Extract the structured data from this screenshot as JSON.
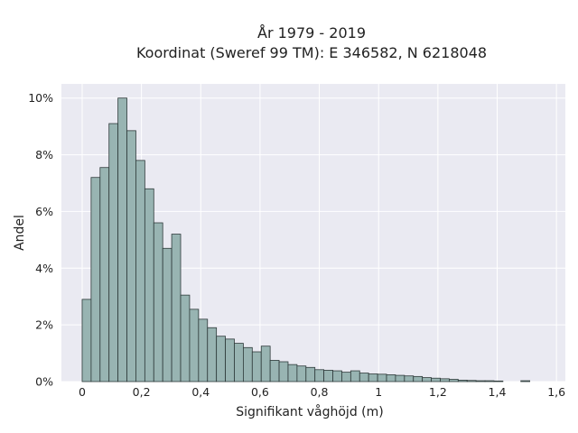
{
  "title": {
    "line1": "År 1979 - 2019",
    "line2": "Koordinat (Sweref 99 TM): E 346582, N 6218048"
  },
  "colors": {
    "plot_background": "#eaeaf2",
    "grid": "#ffffff",
    "bar_fill": "#98b4b2",
    "bar_edge": "#2e3a3a"
  },
  "chart_data": {
    "type": "bar",
    "title": "År 1979 - 2019\nKoordinat (Sweref 99 TM): E 346582, N 6218048",
    "xlabel": "Signifikant våghöjd (m)",
    "ylabel": "Andel",
    "xlim": [
      -0.07,
      1.63
    ],
    "ylim": [
      0,
      10.5
    ],
    "grid": true,
    "x_ticks": [
      {
        "value": 0,
        "label": "0"
      },
      {
        "value": 0.2,
        "label": "0,2"
      },
      {
        "value": 0.4,
        "label": "0,4"
      },
      {
        "value": 0.6,
        "label": "0,6"
      },
      {
        "value": 0.8,
        "label": "0,8"
      },
      {
        "value": 1.0,
        "label": "1"
      },
      {
        "value": 1.2,
        "label": "1,2"
      },
      {
        "value": 1.4,
        "label": "1,4"
      },
      {
        "value": 1.6,
        "label": "1,6"
      }
    ],
    "y_ticks": [
      {
        "value": 0,
        "label": "0%"
      },
      {
        "value": 2,
        "label": "2%"
      },
      {
        "value": 4,
        "label": "4%"
      },
      {
        "value": 6,
        "label": "6%"
      },
      {
        "value": 8,
        "label": "8%"
      },
      {
        "value": 10,
        "label": "10%"
      }
    ],
    "bin_width": 0.0302,
    "bin_start": 0,
    "values": [
      2.9,
      7.2,
      7.55,
      9.1,
      10.0,
      8.85,
      7.8,
      6.8,
      5.6,
      4.7,
      5.2,
      3.05,
      2.55,
      2.2,
      1.9,
      1.6,
      1.5,
      1.35,
      1.2,
      1.05,
      1.25,
      0.75,
      0.7,
      0.6,
      0.55,
      0.5,
      0.42,
      0.4,
      0.38,
      0.33,
      0.38,
      0.3,
      0.27,
      0.26,
      0.24,
      0.22,
      0.2,
      0.18,
      0.14,
      0.12,
      0.1,
      0.08,
      0.05,
      0.04,
      0.03,
      0.03,
      0.02,
      0.0,
      0.0,
      0.03
    ]
  }
}
